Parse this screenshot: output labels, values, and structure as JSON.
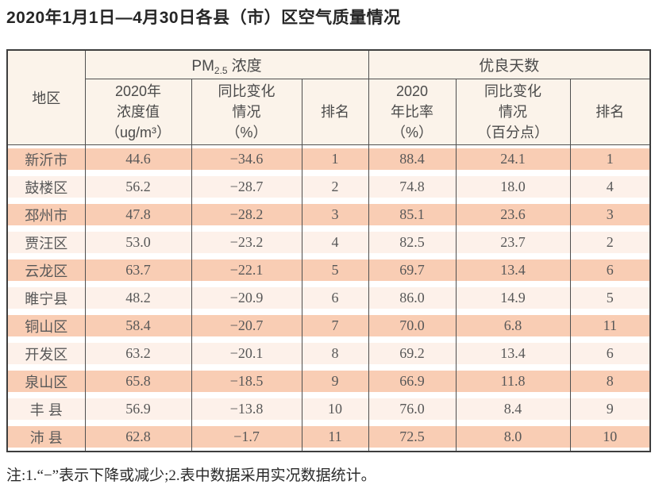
{
  "title": "2020年1月1日—4月30日各县（市）区空气质量情况",
  "table": {
    "region_header": "地区",
    "pm25_group": {
      "prefix": "PM",
      "subscript": "2.5",
      "suffix": "浓度"
    },
    "good_days_group": "优良天数",
    "subheaders": [
      "2020年\n浓度值\n（ug/m³）",
      "同比变化\n情况\n（%）",
      "排名",
      "2020\n年比率\n（%）",
      "同比变化\n情况\n（百分点）",
      "排名"
    ],
    "rows": [
      {
        "region": "新沂市",
        "pm_value": "44.6",
        "pm_change": "−34.6",
        "pm_rank": "1",
        "good_ratio": "88.4",
        "good_change": "24.1",
        "good_rank": "1"
      },
      {
        "region": "鼓楼区",
        "pm_value": "56.2",
        "pm_change": "−28.7",
        "pm_rank": "2",
        "good_ratio": "74.8",
        "good_change": "18.0",
        "good_rank": "4"
      },
      {
        "region": "邳州市",
        "pm_value": "47.8",
        "pm_change": "−28.2",
        "pm_rank": "3",
        "good_ratio": "85.1",
        "good_change": "23.6",
        "good_rank": "3"
      },
      {
        "region": "贾汪区",
        "pm_value": "53.0",
        "pm_change": "−23.2",
        "pm_rank": "4",
        "good_ratio": "82.5",
        "good_change": "23.7",
        "good_rank": "2"
      },
      {
        "region": "云龙区",
        "pm_value": "63.7",
        "pm_change": "−22.1",
        "pm_rank": "5",
        "good_ratio": "69.7",
        "good_change": "13.4",
        "good_rank": "6"
      },
      {
        "region": "睢宁县",
        "pm_value": "48.2",
        "pm_change": "−20.9",
        "pm_rank": "6",
        "good_ratio": "86.0",
        "good_change": "14.9",
        "good_rank": "5"
      },
      {
        "region": "铜山区",
        "pm_value": "58.4",
        "pm_change": "−20.7",
        "pm_rank": "7",
        "good_ratio": "70.0",
        "good_change": "6.8",
        "good_rank": "11"
      },
      {
        "region": "开发区",
        "pm_value": "63.2",
        "pm_change": "−20.1",
        "pm_rank": "8",
        "good_ratio": "69.2",
        "good_change": "13.4",
        "good_rank": "6"
      },
      {
        "region": "泉山区",
        "pm_value": "65.8",
        "pm_change": "−18.5",
        "pm_rank": "9",
        "good_ratio": "66.9",
        "good_change": "11.8",
        "good_rank": "8"
      },
      {
        "region": "丰 县",
        "pm_value": "56.9",
        "pm_change": "−13.8",
        "pm_rank": "10",
        "good_ratio": "76.0",
        "good_change": "8.4",
        "good_rank": "9"
      },
      {
        "region": "沛 县",
        "pm_value": "62.8",
        "pm_change": "−1.7",
        "pm_rank": "11",
        "good_ratio": "72.5",
        "good_change": "8.0",
        "good_rank": "10"
      }
    ]
  },
  "note": "注:1.“−”表示下降或减少;2.表中数据采用实况数据统计。",
  "colors": {
    "band_strong": "#f9cdb4",
    "band_light": "#fdf1ea",
    "header_bg": "#fbf3ea",
    "border_dark": "#3e3e3e",
    "line": "#4f4f4f",
    "header_text": "#4a4a4a",
    "cell_text": "#585858"
  }
}
